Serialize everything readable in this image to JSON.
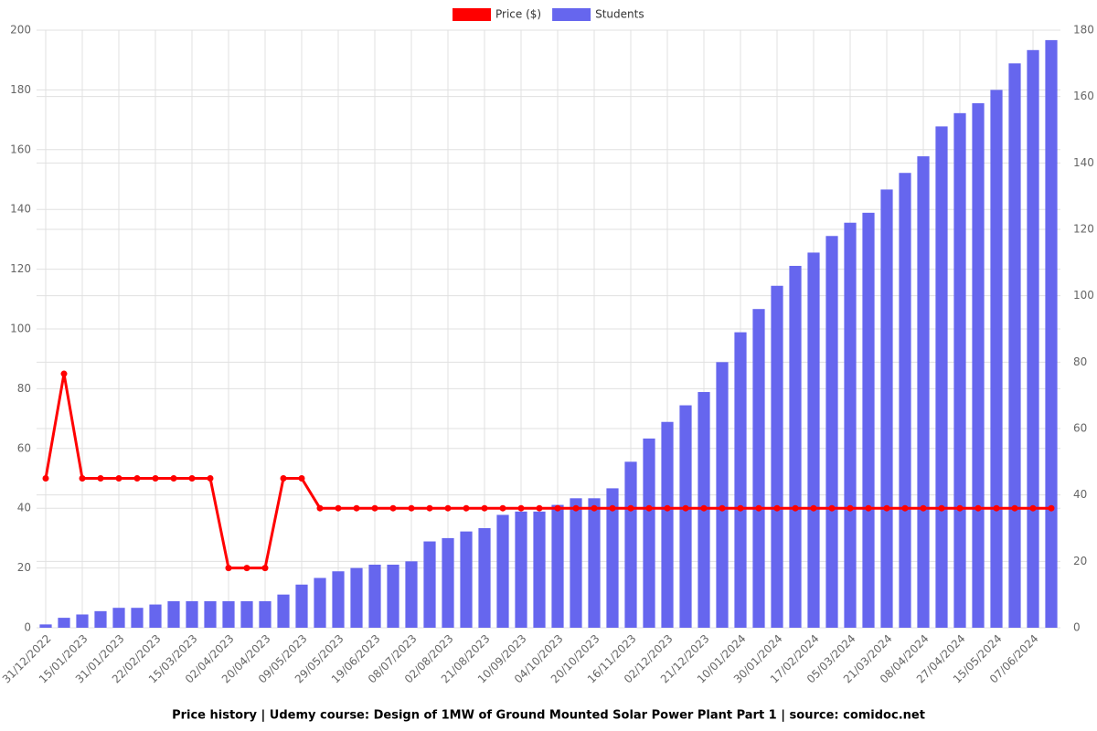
{
  "chart_data": {
    "type": "bar",
    "title": "Price history | Udemy course: Design of 1MW of Ground Mounted Solar Power Plant Part 1 | source: comidoc.net",
    "categories": [
      "31/12/2022",
      null,
      "15/01/2023",
      null,
      "31/01/2023",
      null,
      "22/02/2023",
      null,
      "15/03/2023",
      null,
      "02/04/2023",
      null,
      "20/04/2023",
      null,
      "09/05/2023",
      null,
      "29/05/2023",
      null,
      "19/06/2023",
      null,
      "08/07/2023",
      null,
      "02/08/2023",
      null,
      "21/08/2023",
      null,
      "10/09/2023",
      null,
      "04/10/2023",
      null,
      "20/10/2023",
      null,
      "16/11/2023",
      null,
      "02/12/2023",
      null,
      "21/12/2023",
      null,
      "10/01/2024",
      null,
      "30/01/2024",
      null,
      "17/02/2024",
      null,
      "05/03/2024",
      null,
      "21/03/2024",
      null,
      "08/04/2024",
      null,
      "27/04/2024",
      null,
      "15/05/2024",
      null,
      "07/06/2024",
      null
    ],
    "series": [
      {
        "name": "Price ($)",
        "type": "line",
        "color": "#ff0000",
        "axis": "y",
        "values": [
          50,
          85,
          50,
          50,
          50,
          50,
          50,
          50,
          50,
          50,
          20,
          20,
          20,
          50,
          50,
          40,
          40,
          40,
          40,
          40,
          40,
          40,
          40,
          40,
          40,
          40,
          40,
          40,
          40,
          40,
          40,
          40,
          40,
          40,
          40,
          40,
          40,
          40,
          40,
          40,
          40,
          40,
          40,
          40,
          40,
          40,
          40,
          40,
          40,
          40,
          40,
          40,
          40,
          40,
          40,
          40
        ]
      },
      {
        "name": "Students",
        "type": "bar",
        "color": "#6666ee",
        "axis": "y2",
        "values": [
          1,
          3,
          4,
          5,
          6,
          6,
          7,
          8,
          8,
          8,
          8,
          8,
          8,
          10,
          13,
          15,
          17,
          18,
          19,
          19,
          20,
          26,
          27,
          29,
          30,
          34,
          35,
          35,
          37,
          39,
          39,
          42,
          50,
          57,
          62,
          67,
          71,
          80,
          89,
          96,
          103,
          109,
          113,
          118,
          122,
          125,
          132,
          137,
          142,
          151,
          155,
          158,
          162,
          170,
          174,
          177
        ]
      }
    ],
    "ylim": [
      0,
      200
    ],
    "yticks": [
      0,
      20,
      40,
      60,
      80,
      100,
      120,
      140,
      160,
      180,
      200
    ],
    "y2lim": [
      0,
      180
    ],
    "y2ticks": [
      0,
      20,
      40,
      60,
      80,
      100,
      120,
      140,
      160,
      180
    ],
    "grid": true,
    "legend": "top"
  }
}
